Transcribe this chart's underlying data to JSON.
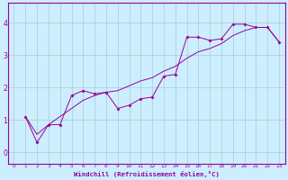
{
  "xlabel": "Windchill (Refroidissement éolien,°C)",
  "xlim": [
    -0.5,
    23.5
  ],
  "ylim": [
    -0.35,
    4.6
  ],
  "yticks": [
    0,
    1,
    2,
    3,
    4
  ],
  "xticks": [
    0,
    1,
    2,
    3,
    4,
    5,
    6,
    7,
    8,
    9,
    10,
    11,
    12,
    13,
    14,
    15,
    16,
    17,
    18,
    19,
    20,
    21,
    22,
    23
  ],
  "bg_color": "#cceeff",
  "line_color": "#990099",
  "grid_color": "#aacccc",
  "series1_x": [
    1,
    2,
    3,
    4,
    5,
    6,
    7,
    8,
    9,
    10,
    11,
    12,
    13,
    14,
    15,
    16,
    17,
    18,
    19,
    20,
    21,
    22,
    23
  ],
  "series1_y": [
    1.1,
    0.3,
    0.85,
    0.85,
    1.75,
    1.9,
    1.8,
    1.85,
    1.35,
    1.45,
    1.65,
    1.7,
    2.35,
    2.4,
    3.55,
    3.55,
    3.45,
    3.5,
    3.95,
    3.95,
    3.85,
    3.85,
    3.4
  ],
  "series2_x": [
    1,
    2,
    3,
    4,
    5,
    6,
    7,
    8,
    9,
    10,
    11,
    12,
    13,
    14,
    15,
    16,
    17,
    18,
    19,
    20,
    21,
    22,
    23
  ],
  "series2_y": [
    1.1,
    0.55,
    0.85,
    1.1,
    1.35,
    1.6,
    1.75,
    1.85,
    1.9,
    2.05,
    2.2,
    2.3,
    2.5,
    2.65,
    2.9,
    3.1,
    3.2,
    3.35,
    3.6,
    3.75,
    3.85,
    3.85,
    3.4
  ],
  "marker_x": [
    1,
    2,
    3,
    4,
    5,
    6,
    7,
    8,
    9,
    10,
    11,
    12,
    13,
    14,
    15,
    16,
    17,
    18,
    19,
    20,
    21,
    22,
    23
  ],
  "marker_y": [
    1.1,
    0.3,
    0.85,
    0.85,
    1.75,
    1.9,
    1.8,
    1.85,
    1.35,
    1.45,
    1.65,
    1.7,
    2.35,
    2.4,
    3.55,
    3.55,
    3.45,
    3.5,
    3.95,
    3.95,
    3.85,
    3.85,
    3.4
  ]
}
